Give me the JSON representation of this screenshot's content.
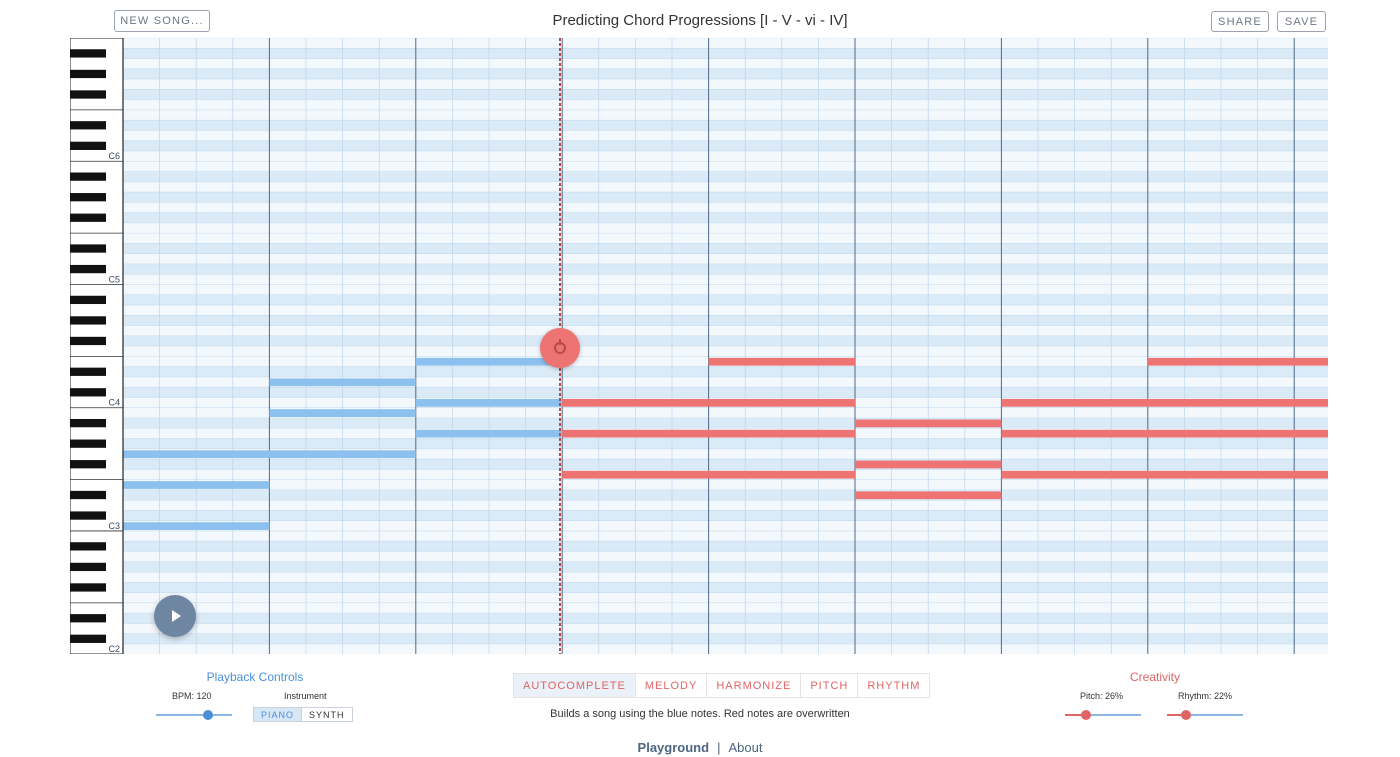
{
  "header": {
    "new_song_label": "NEW SONG...",
    "title": "Predicting Chord Progressions [I - V - vi - IV]",
    "share_label": "SHARE",
    "save_label": "SAVE"
  },
  "piano_roll": {
    "octave_labels": [
      "C6",
      "C5",
      "C4",
      "C3",
      "C2"
    ],
    "user_note_color": "#8cc0ee",
    "generated_note_color": "#ee7474",
    "playhead_color": "#b84a4a",
    "playhead_position_fraction": 0.364
  },
  "playback": {
    "title": "Playback Controls",
    "bpm_label": "BPM: 120",
    "bpm_value": 120,
    "instrument_label": "Instrument",
    "instruments": [
      "PIANO",
      "SYNTH"
    ],
    "selected_instrument": "PIANO"
  },
  "modes": {
    "items": [
      "AUTOCOMPLETE",
      "MELODY",
      "HARMONIZE",
      "PITCH",
      "RHYTHM"
    ],
    "selected": "AUTOCOMPLETE",
    "description": "Builds a song using the blue notes. Red notes are overwritten"
  },
  "creativity": {
    "title": "Creativity",
    "pitch_label": "Pitch: 26%",
    "pitch_value": 26,
    "rhythm_label": "Rhythm: 22%",
    "rhythm_value": 22
  },
  "footer": {
    "playground": "Playground",
    "separator": "|",
    "about": "About"
  }
}
